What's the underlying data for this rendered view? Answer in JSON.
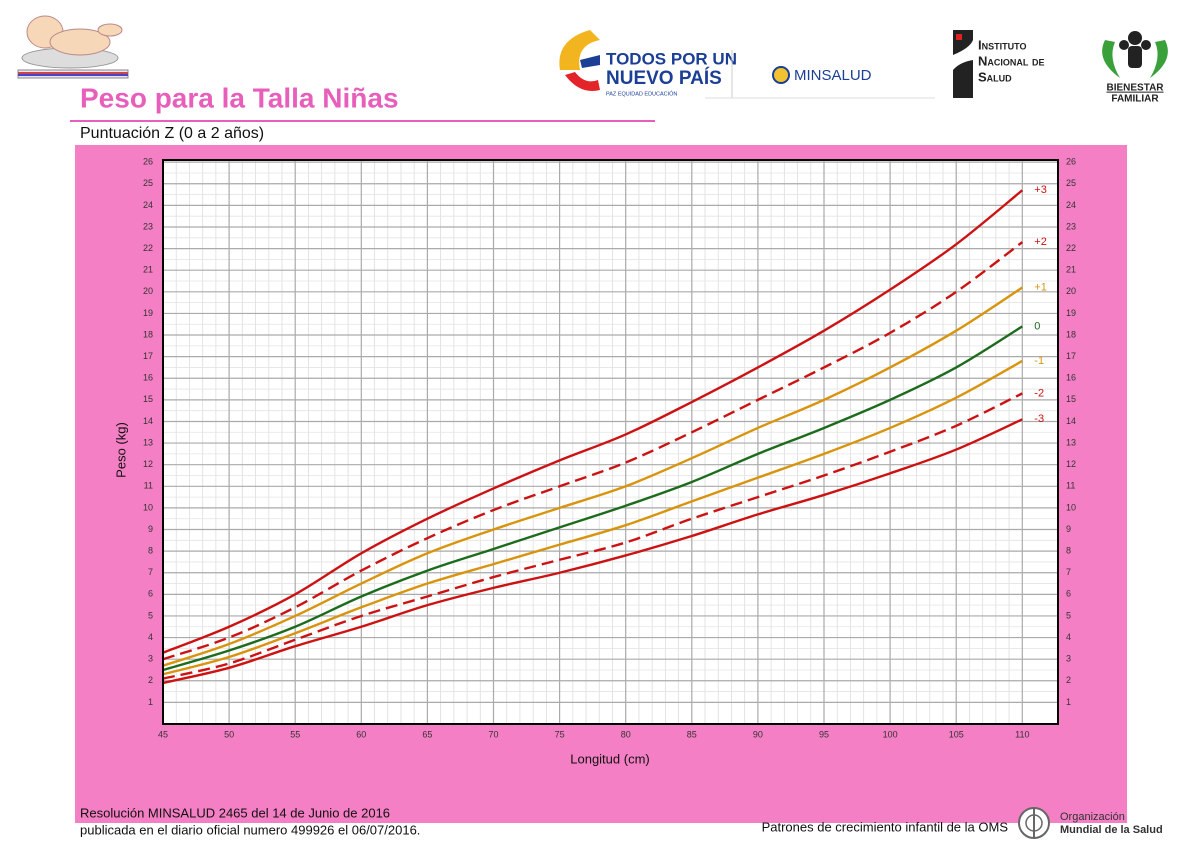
{
  "header": {
    "title": "Peso para la Talla Niñas",
    "subtitle": "Puntuación Z (0 a 2 años)",
    "logo_todos_1": "TODOS POR UN",
    "logo_todos_2": "NUEVO PAÍS",
    "logo_todos_3": "PAZ  EQUIDAD  EDUCACIÓN",
    "logo_minsalud": "MINSALUD",
    "logo_ins_1": "Instituto",
    "logo_ins_2": "Nacional de",
    "logo_ins_3": "Salud",
    "logo_icbf_1": "BIENESTAR",
    "logo_icbf_2": "FAMILIAR"
  },
  "footer": {
    "resolution_1": "Resolución MINSALUD 2465 del 14 de Junio de 2016",
    "resolution_2": "publicada en el diario oficial numero 499926 el 06/07/2016.",
    "patterns": "Patrones de crecimiento infantil de la OMS",
    "oms_1": "Organización",
    "oms_2": "Mundial de la Salud"
  },
  "chart_data": {
    "type": "line",
    "x_label": "Longitud (cm)",
    "y_label": "Peso (kg)",
    "x": [
      45,
      50,
      55,
      60,
      65,
      70,
      75,
      80,
      85,
      90,
      95,
      100,
      105,
      110
    ],
    "xlim": [
      45,
      112.7
    ],
    "xticks": [
      45,
      50,
      55,
      60,
      65,
      70,
      75,
      80,
      85,
      90,
      95,
      100,
      105,
      110
    ],
    "ylim": [
      0,
      26.1
    ],
    "yticks": [
      1,
      2,
      3,
      4,
      5,
      6,
      7,
      8,
      9,
      10,
      11,
      12,
      13,
      14,
      15,
      16,
      17,
      18,
      19,
      20,
      21,
      22,
      23,
      24,
      25,
      26
    ],
    "grid": true,
    "right_axis_labels": true,
    "series": [
      {
        "name": "+3",
        "color": "#cc1212",
        "dashed": false,
        "values": [
          3.3,
          4.5,
          6.0,
          7.9,
          9.5,
          10.9,
          12.2,
          13.4,
          14.9,
          16.5,
          18.2,
          20.1,
          22.2,
          24.7
        ]
      },
      {
        "name": "+2",
        "color": "#cc1212",
        "dashed": true,
        "values": [
          3.0,
          4.0,
          5.4,
          7.1,
          8.6,
          9.9,
          11.0,
          12.1,
          13.5,
          15.0,
          16.5,
          18.1,
          20.0,
          22.3
        ]
      },
      {
        "name": "+1",
        "color": "#d9940e",
        "dashed": false,
        "values": [
          2.7,
          3.7,
          5.0,
          6.5,
          7.9,
          9.0,
          10.0,
          11.0,
          12.3,
          13.7,
          15.0,
          16.5,
          18.2,
          20.2
        ]
      },
      {
        "name": "0",
        "color": "#1d6b1d",
        "dashed": false,
        "values": [
          2.5,
          3.4,
          4.5,
          5.9,
          7.1,
          8.1,
          9.1,
          10.1,
          11.2,
          12.5,
          13.7,
          15.0,
          16.5,
          18.4
        ]
      },
      {
        "name": "-1",
        "color": "#d9940e",
        "dashed": false,
        "values": [
          2.3,
          3.1,
          4.2,
          5.4,
          6.5,
          7.4,
          8.3,
          9.2,
          10.3,
          11.4,
          12.5,
          13.7,
          15.1,
          16.8
        ]
      },
      {
        "name": "-2",
        "color": "#cc1212",
        "dashed": true,
        "values": [
          2.1,
          2.8,
          3.9,
          5.0,
          5.9,
          6.8,
          7.6,
          8.4,
          9.5,
          10.5,
          11.5,
          12.6,
          13.8,
          15.3
        ]
      },
      {
        "name": "-3",
        "color": "#cc1212",
        "dashed": false,
        "values": [
          1.9,
          2.6,
          3.6,
          4.5,
          5.5,
          6.3,
          7.0,
          7.8,
          8.7,
          9.7,
          10.6,
          11.6,
          12.7,
          14.1
        ]
      }
    ]
  }
}
